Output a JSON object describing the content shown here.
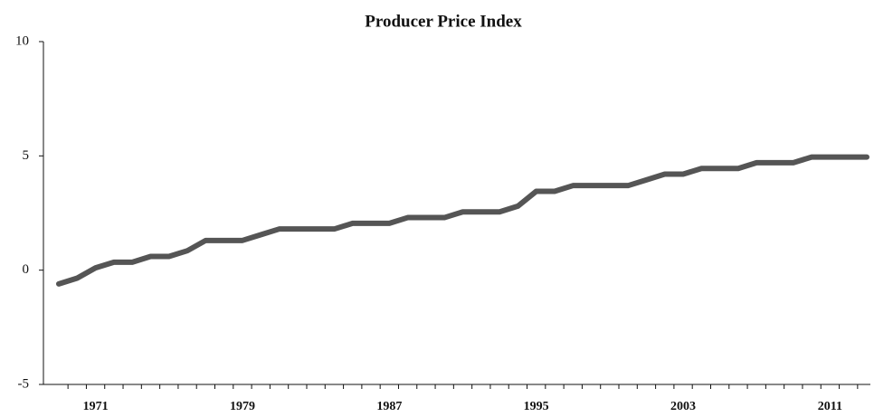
{
  "chart_data": {
    "type": "line",
    "title": "Producer Price Index",
    "categories": [
      null,
      null,
      "1971",
      null,
      null,
      null,
      null,
      null,
      null,
      null,
      "1979",
      null,
      null,
      null,
      null,
      null,
      null,
      null,
      "1987",
      null,
      null,
      null,
      null,
      null,
      null,
      null,
      "1995",
      null,
      null,
      null,
      null,
      null,
      null,
      null,
      "2003",
      null,
      null,
      null,
      null,
      null,
      null,
      null,
      "2011",
      null,
      null
    ],
    "series": [
      {
        "name": "Producer Price Index",
        "color": "#555555",
        "values": [
          -0.6,
          -0.35,
          0.1,
          0.35,
          0.35,
          0.6,
          0.6,
          0.85,
          1.3,
          1.3,
          1.3,
          1.55,
          1.8,
          1.8,
          1.8,
          1.8,
          2.05,
          2.05,
          2.05,
          2.3,
          2.3,
          2.3,
          2.55,
          2.55,
          2.55,
          2.8,
          3.45,
          3.45,
          3.7,
          3.7,
          3.7,
          3.7,
          3.95,
          4.2,
          4.2,
          4.45,
          4.45,
          4.45,
          4.7,
          4.7,
          4.7,
          4.95,
          4.95,
          4.95,
          4.95
        ]
      }
    ],
    "ylim": [
      -5,
      10
    ],
    "yticks": [
      -5,
      0,
      5,
      10
    ]
  }
}
